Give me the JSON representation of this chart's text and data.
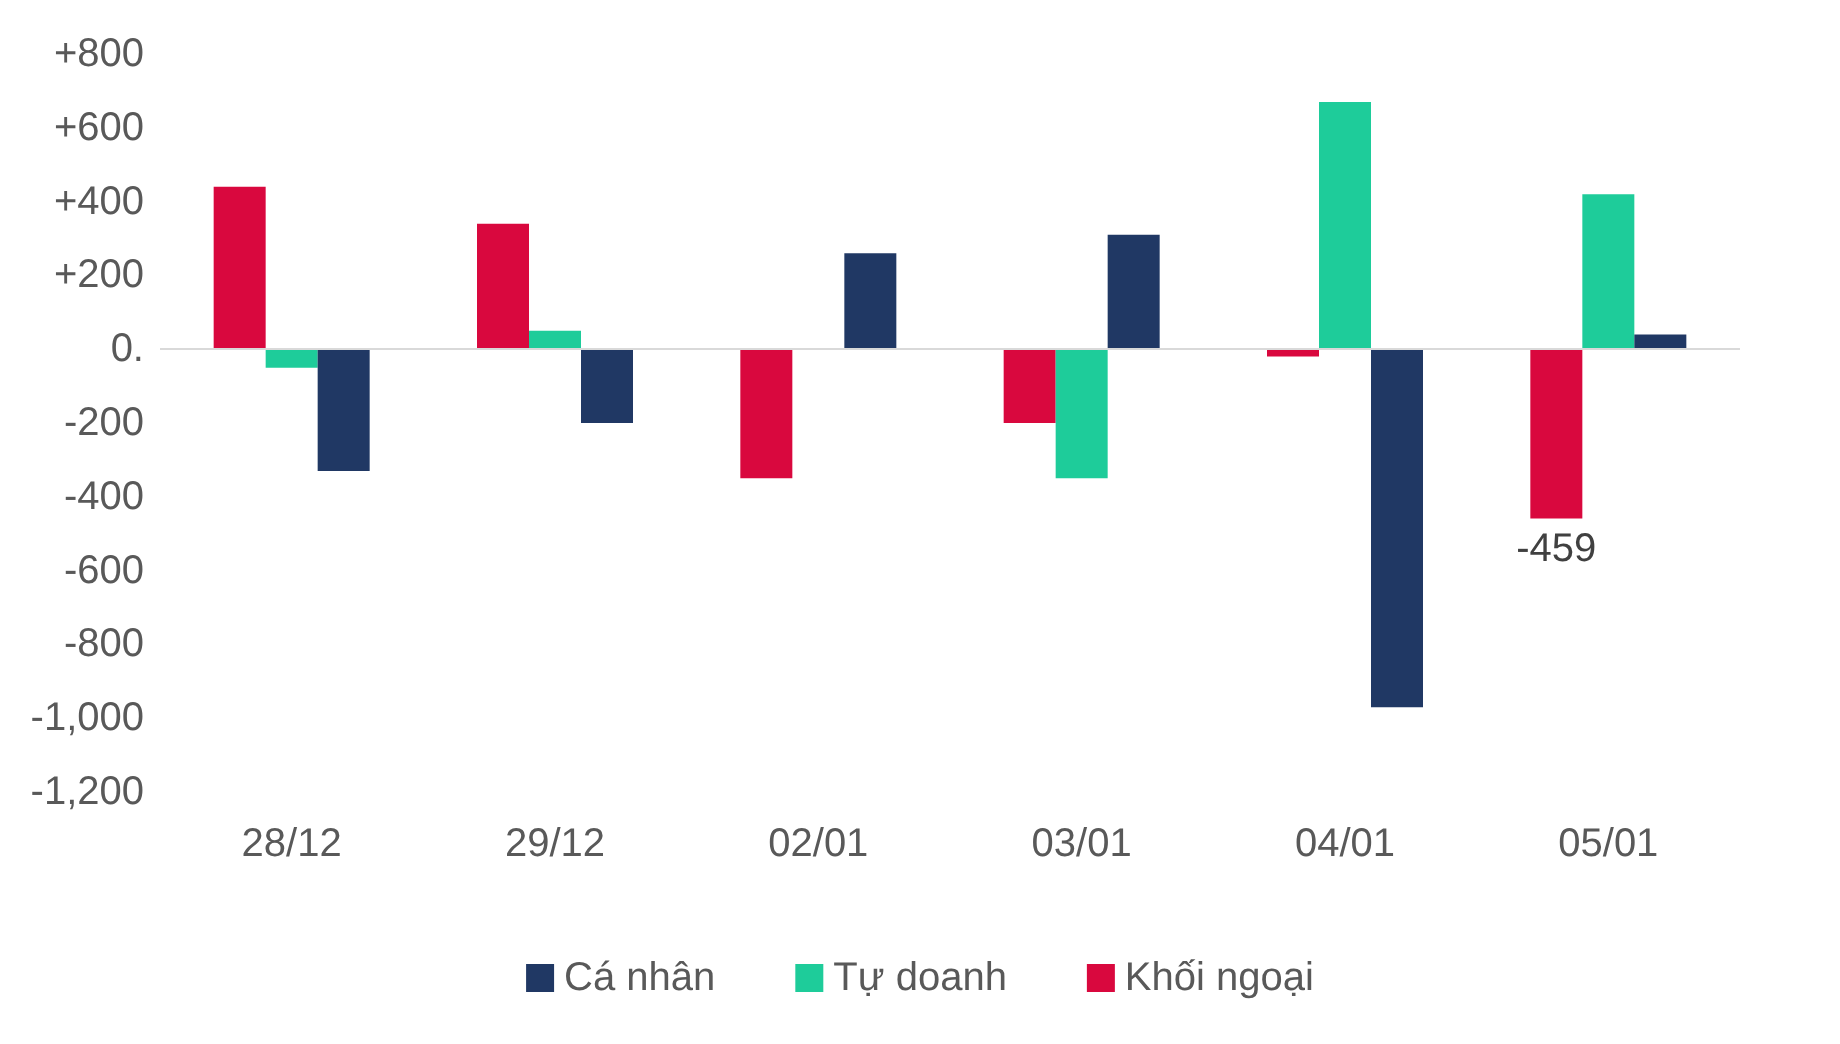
{
  "chart_data": {
    "type": "bar",
    "categories": [
      "28/12",
      "29/12",
      "02/01",
      "03/01",
      "04/01",
      "05/01"
    ],
    "series": [
      {
        "name": "Cá nhân",
        "color": "#203864",
        "values": [
          -330,
          -200,
          260,
          310,
          -970,
          40
        ]
      },
      {
        "name": "Tự doanh",
        "color": "#1ecc9a",
        "values": [
          -50,
          50,
          0,
          -350,
          670,
          420
        ]
      },
      {
        "name": "Khối ngoại",
        "color": "#d9083e",
        "values": [
          440,
          340,
          -350,
          -200,
          -20,
          -459
        ],
        "value_labels": [
          null,
          null,
          null,
          null,
          null,
          "-459"
        ]
      }
    ],
    "ylim": [
      -1200,
      800
    ],
    "yticks": [
      {
        "value": 800,
        "label": "+800"
      },
      {
        "value": 600,
        "label": "+600"
      },
      {
        "value": 400,
        "label": "+400"
      },
      {
        "value": 200,
        "label": "+200"
      },
      {
        "value": 0,
        "label": "0."
      },
      {
        "value": -200,
        "label": "-200"
      },
      {
        "value": -400,
        "label": "-400"
      },
      {
        "value": -600,
        "label": "-600"
      },
      {
        "value": -800,
        "label": "-800"
      },
      {
        "value": -1000,
        "label": "-1,000"
      },
      {
        "value": -1200,
        "label": "-1,200"
      }
    ],
    "ref_lines": [
      {
        "axis": "y",
        "value": 0,
        "color": "#d9d9d9"
      }
    ],
    "grid": false,
    "legend": "bottom"
  }
}
